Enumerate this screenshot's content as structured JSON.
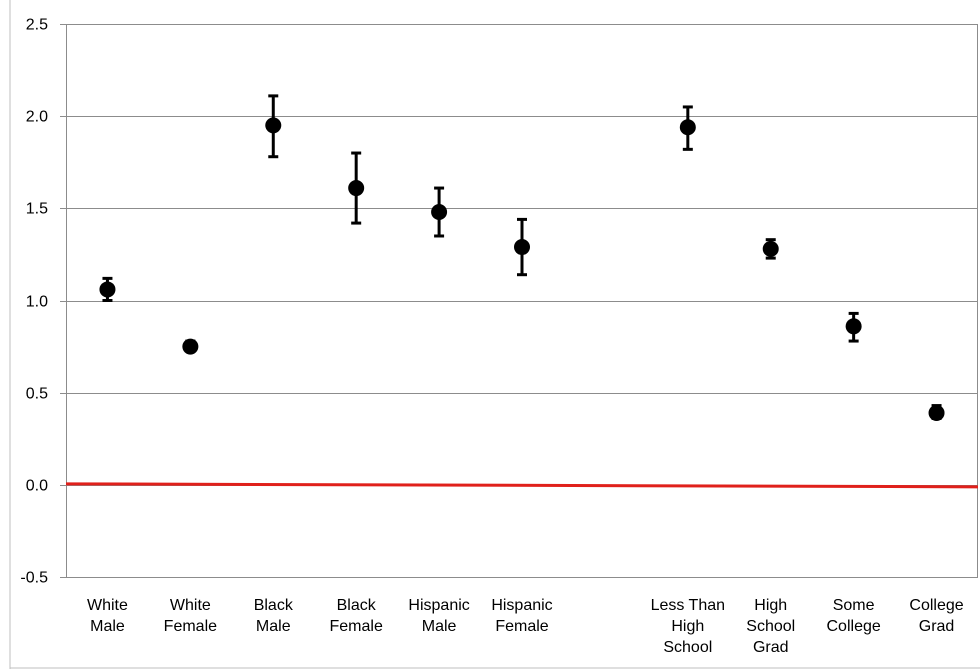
{
  "chart_data": {
    "type": "scatter",
    "title": "",
    "xlabel": "",
    "ylabel": "",
    "ylim": [
      -0.5,
      2.5
    ],
    "yticks": [
      "-0.5",
      "0.0",
      "0.5",
      "1.0",
      "1.5",
      "2.0",
      "2.5"
    ],
    "ytick_values": [
      -0.5,
      0.0,
      0.5,
      1.0,
      1.5,
      2.0,
      2.5
    ],
    "grid": "horizontal",
    "reference_line": {
      "y": 0.0,
      "color": "#e0201b"
    },
    "categories": [
      [
        "White",
        "Male"
      ],
      [
        "White",
        "Female"
      ],
      [
        "Black",
        "Male"
      ],
      [
        "Black",
        "Female"
      ],
      [
        "Hispanic",
        "Male"
      ],
      [
        "Hispanic",
        "Female"
      ],
      [],
      [
        "Less Than",
        "High",
        "School"
      ],
      [
        "High",
        "School",
        "Grad"
      ],
      [
        "Some",
        "College"
      ],
      [
        "College",
        "Grad"
      ]
    ],
    "values": [
      1.06,
      0.75,
      1.95,
      1.61,
      1.48,
      1.29,
      null,
      1.94,
      1.28,
      0.86,
      0.39
    ],
    "err_low": [
      1.0,
      0.73,
      1.78,
      1.42,
      1.35,
      1.14,
      null,
      1.82,
      1.23,
      0.78,
      0.36
    ],
    "err_high": [
      1.12,
      0.78,
      2.11,
      1.8,
      1.61,
      1.44,
      null,
      2.05,
      1.33,
      0.93,
      0.43
    ],
    "marker_color": "#000000"
  }
}
